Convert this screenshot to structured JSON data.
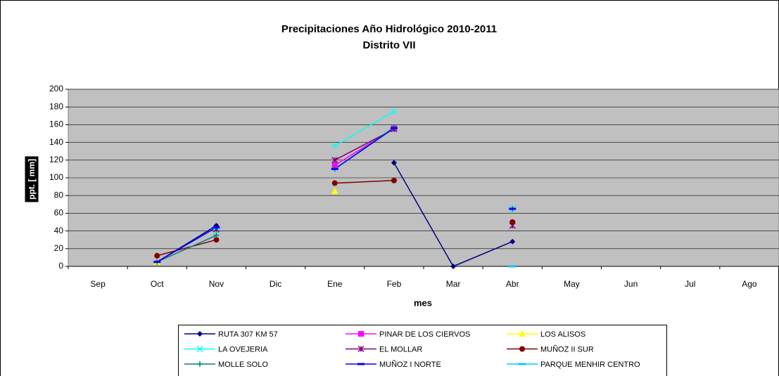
{
  "chart_data": {
    "type": "line",
    "title": "Precipitaciones Año Hidrológico 2010-2011",
    "subtitle": "Distrito VII",
    "x_label": "mes",
    "y_label": "ppt. [ mm]",
    "categories": [
      "Sep",
      "Oct",
      "Nov",
      "Dic",
      "Ene",
      "Feb",
      "Mar",
      "Abr",
      "May",
      "Jun",
      "Jul",
      "Ago"
    ],
    "ylim": [
      0,
      200
    ],
    "yticks": [
      0,
      20,
      40,
      60,
      80,
      100,
      120,
      140,
      160,
      180,
      200
    ],
    "plot_background": "#c0c0c0",
    "legend": "bottom",
    "series": [
      {
        "name": "RUTA 307 KM 57",
        "color": "#000080",
        "marker": "diamond",
        "values": [
          null,
          5,
          46,
          null,
          null,
          117,
          0,
          28,
          null,
          null,
          null,
          null
        ]
      },
      {
        "name": "PINAR DE LOS CIERVOS",
        "color": "#ff00ff",
        "marker": "square",
        "values": [
          null,
          null,
          null,
          null,
          114,
          156,
          null,
          null,
          null,
          null,
          null,
          null
        ]
      },
      {
        "name": "LOS ALISOS",
        "color": "#ffff00",
        "marker": "triangle",
        "values": [
          null,
          5,
          null,
          null,
          85,
          null,
          null,
          null,
          null,
          null,
          null,
          null
        ]
      },
      {
        "name": "LA OVEJERIA",
        "color": "#00ffff",
        "marker": "x",
        "values": [
          null,
          null,
          40,
          null,
          136,
          175,
          null,
          65,
          null,
          null,
          null,
          null
        ]
      },
      {
        "name": "EL MOLLAR",
        "color": "#800080",
        "marker": "star",
        "values": [
          null,
          null,
          42,
          null,
          120,
          155,
          null,
          46,
          null,
          null,
          null,
          null
        ]
      },
      {
        "name": "MUÑOZ II SUR",
        "color": "#800000",
        "marker": "circle",
        "values": [
          null,
          12,
          30,
          null,
          94,
          97,
          null,
          50,
          null,
          null,
          null,
          null
        ]
      },
      {
        "name": "MOLLE SOLO",
        "color": "#008080",
        "marker": "plus",
        "values": [
          null,
          5,
          35,
          null,
          110,
          157,
          null,
          65,
          null,
          null,
          null,
          null
        ]
      },
      {
        "name": "MUÑOZ I NORTE",
        "color": "#0000ff",
        "marker": "dash",
        "values": [
          null,
          5,
          44,
          null,
          110,
          156,
          null,
          65,
          null,
          null,
          null,
          null
        ]
      },
      {
        "name": "PARQUE MENHIR CENTRO",
        "color": "#00ccff",
        "marker": "dash",
        "values": [
          null,
          null,
          null,
          null,
          null,
          null,
          null,
          0,
          null,
          null,
          null,
          null
        ]
      }
    ]
  }
}
